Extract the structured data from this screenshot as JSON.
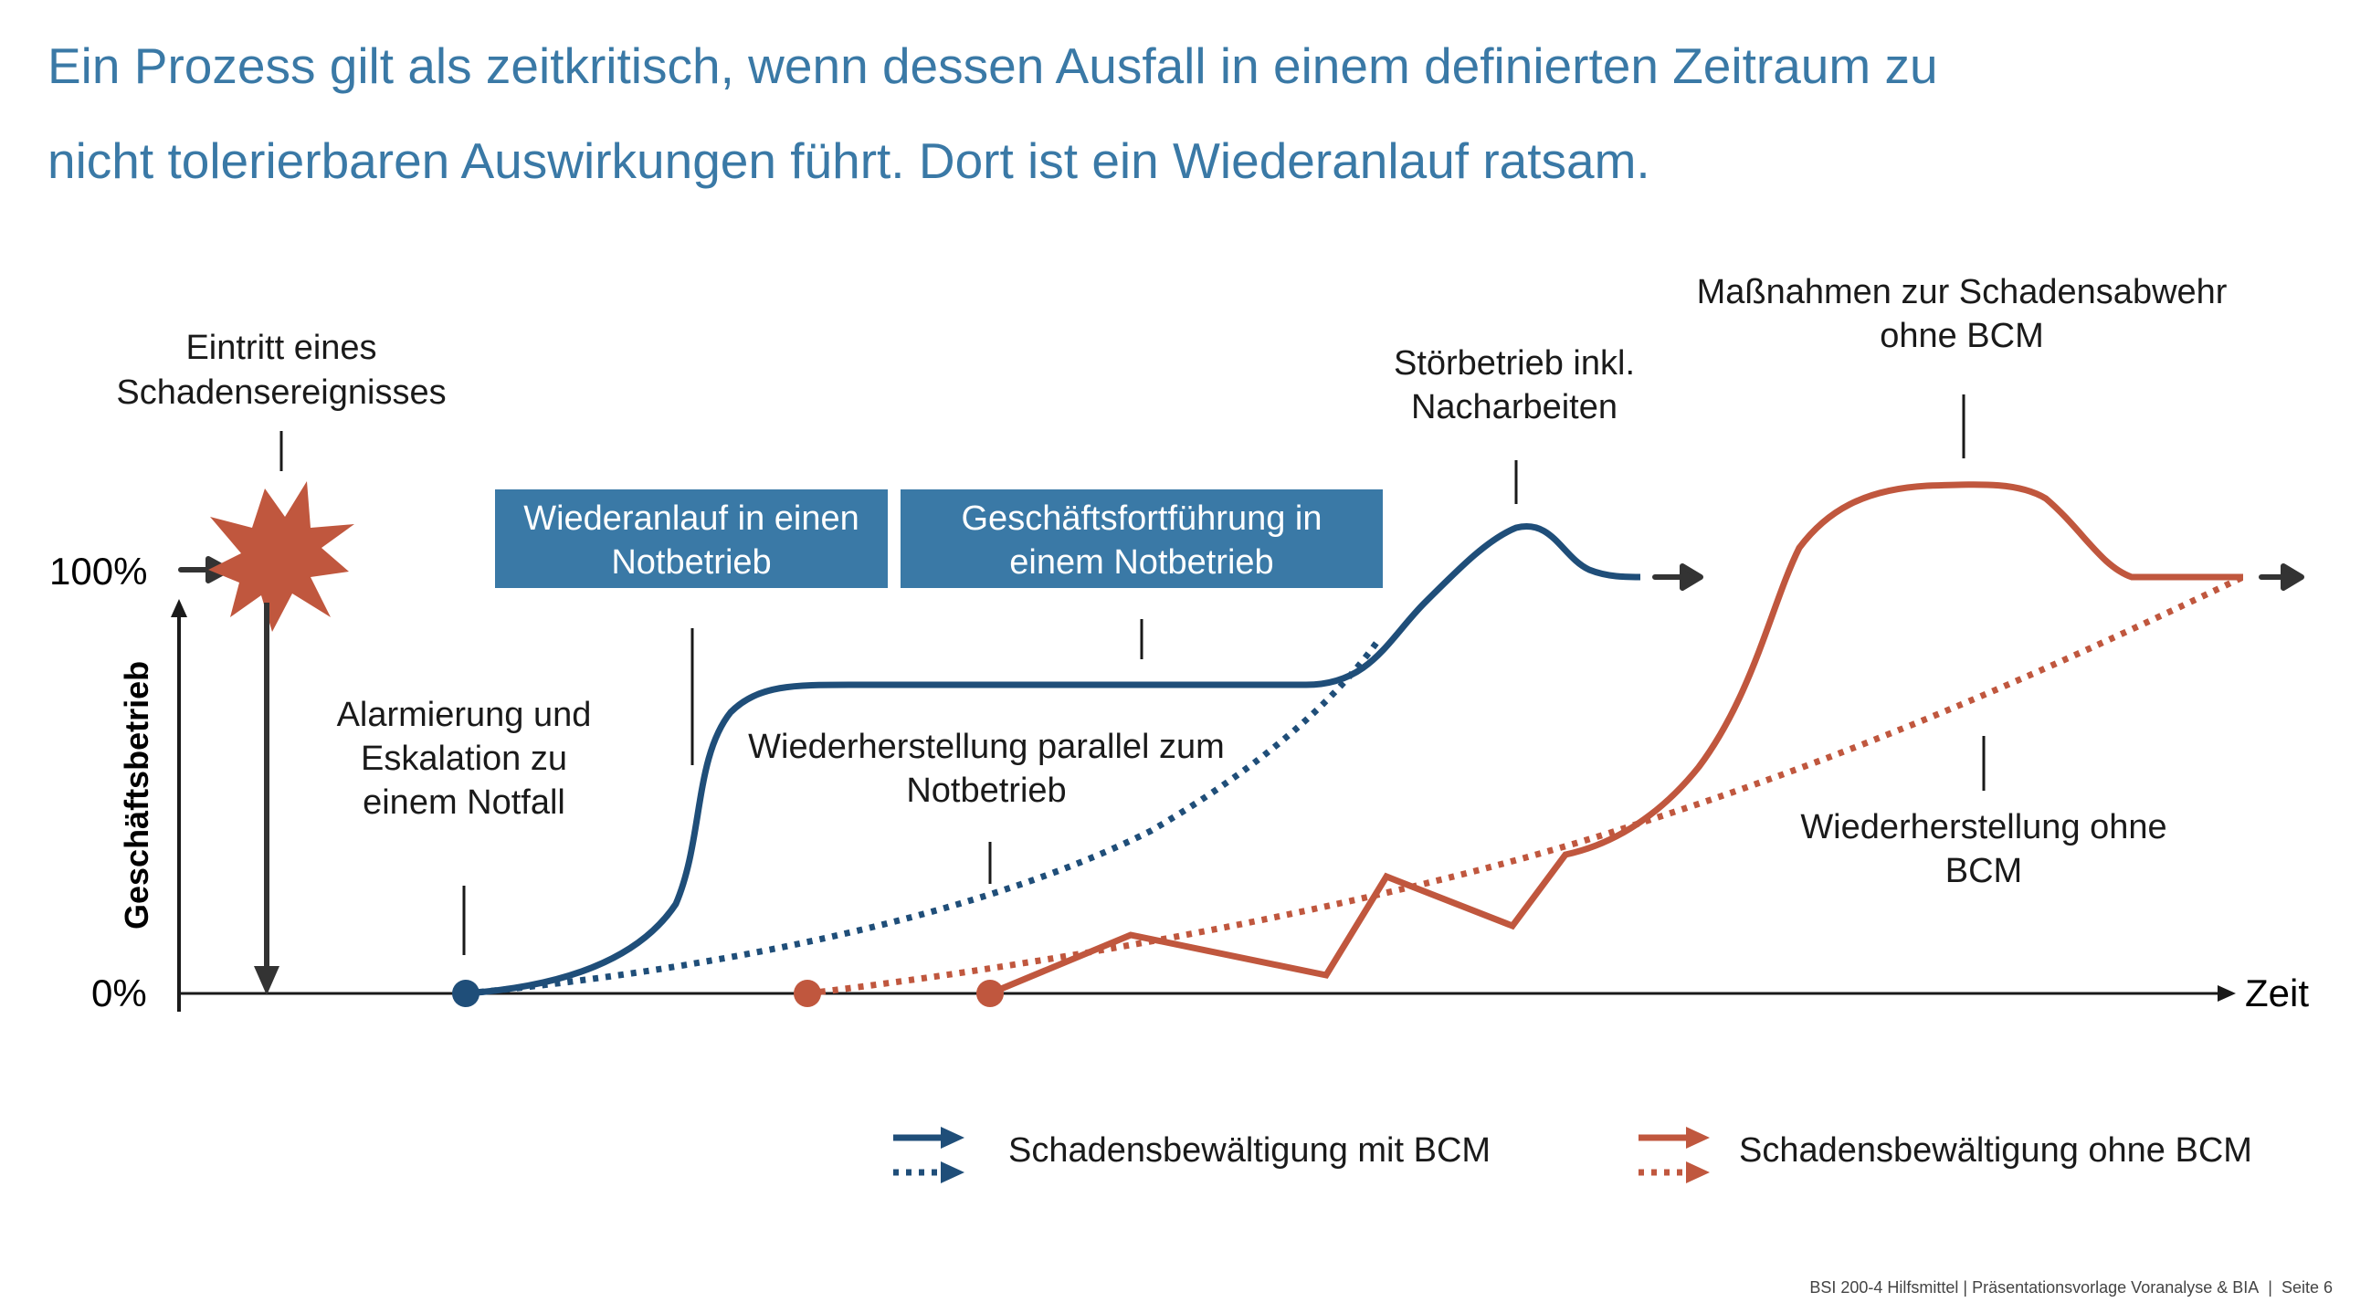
{
  "headline": {
    "line1": "Ein Prozess gilt als zeitkritisch, wenn dessen Ausfall in einem definierten Zeitraum zu",
    "line2": "nicht tolerierbaren Auswirkungen führt. Dort ist ein Wiederanlauf ratsam."
  },
  "axes": {
    "y_top_label": "100%",
    "y_bottom_label": "0%",
    "y_title": "Geschäftsbetrieb",
    "x_title": "Zeit"
  },
  "annotations": {
    "event": [
      "Eintritt eines",
      "Schadensereignisses"
    ],
    "alarm": [
      "Alarmierung und",
      "Eskalation zu",
      "einem Notfall"
    ],
    "restore_parallel": [
      "Wiederherstellung parallel zum",
      "Notbetrieb"
    ],
    "disturbed": [
      "Störbetrieb inkl.",
      "Nacharbeiten"
    ],
    "measures": [
      "Maßnahmen zur Schadensabwehr",
      "ohne BCM"
    ],
    "restore_without": [
      "Wiederherstellung ohne",
      "BCM"
    ]
  },
  "boxes": {
    "restart": [
      "Wiederanlauf in einen",
      "Notbetrieb"
    ],
    "continuity": [
      "Geschäftsfortführung in",
      "einem Notbetrieb"
    ]
  },
  "legend": {
    "with_bcm": "Schadensbewältigung mit BCM",
    "without_bcm": "Schadensbewältigung ohne BCM"
  },
  "footer": {
    "source": "BSI 200-4 Hilfsmittel | Präsentationsvorlage Voranalyse & BIA",
    "page": "Seite 6"
  },
  "colors": {
    "headline": "#3a79a6",
    "with_bcm": "#1f4e79",
    "without_bcm": "#c0573e",
    "box_fill": "#3a79a6",
    "axis": "#1a1a1a"
  }
}
